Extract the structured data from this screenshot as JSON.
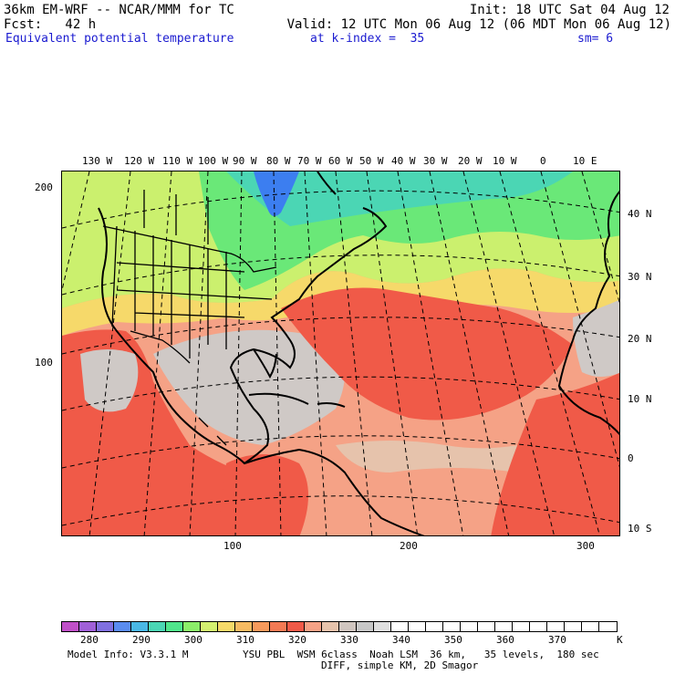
{
  "header": {
    "model": "36km EM-WRF -- NCAR/MMM for TC",
    "init": "Init: 18 UTC Sat 04 Aug 12",
    "fcst": "Fcst:   42 h",
    "valid": "Valid: 12 UTC Mon 06 Aug 12 (06 MDT Mon 06 Aug 12)",
    "field": "Equivalent potential temperature",
    "kindex": "at k-index =  35",
    "sm": "sm= 6"
  },
  "map": {
    "lon_labels": [
      "130 W",
      "120 W",
      "110 W",
      "100 W",
      "90 W",
      "80 W",
      "70 W",
      "60 W",
      "50 W",
      "40 W",
      "30 W",
      "20 W",
      "10 W",
      "0",
      "10 E"
    ],
    "lat_labels": [
      "40 N",
      "30 N",
      "20 N",
      "10 N",
      "0",
      "10 S"
    ],
    "grid_y_labels": [
      "200",
      "100"
    ],
    "grid_x_labels": [
      "100",
      "200",
      "300"
    ],
    "shading_colors": {
      "cold": "#3c7ef0",
      "cool": "#4bd6b4",
      "mild": "#6ae878",
      "warm": "#cbf06e",
      "yellow": "#f6d96a",
      "orange": "#f79a5c",
      "red": "#f05a48",
      "salmon": "#f5a286",
      "tan": "#e6c3ac",
      "gray": "#cfc9c6"
    }
  },
  "colorbar": {
    "colors": [
      "#c050c8",
      "#a060d8",
      "#8070e0",
      "#5a8cf0",
      "#4ab8e6",
      "#4bd6b4",
      "#50e68c",
      "#8cee6a",
      "#d4f070",
      "#f6da6a",
      "#f7bb62",
      "#f79a5c",
      "#f37a54",
      "#f05a48",
      "#f5a286",
      "#e6c3ac",
      "#d0c6c0",
      "#c8c8c8",
      "#e0e0e0",
      "#ffffff",
      "#ffffff",
      "#ffffff",
      "#ffffff",
      "#ffffff",
      "#ffffff",
      "#ffffff",
      "#ffffff",
      "#ffffff",
      "#ffffff",
      "#ffffff",
      "#ffffff",
      "#ffffff"
    ],
    "labels": [
      "280",
      "290",
      "300",
      "310",
      "320",
      "330",
      "340",
      "350",
      "360",
      "370"
    ],
    "unit": "K"
  },
  "footer": {
    "model_info": "Model Info: V3.3.1 M",
    "physics": "YSU PBL  WSM 6class  Noah LSM  36 km,   35 levels,  180 sec",
    "diff": "DIFF, simple KM, 2D Smagor"
  }
}
